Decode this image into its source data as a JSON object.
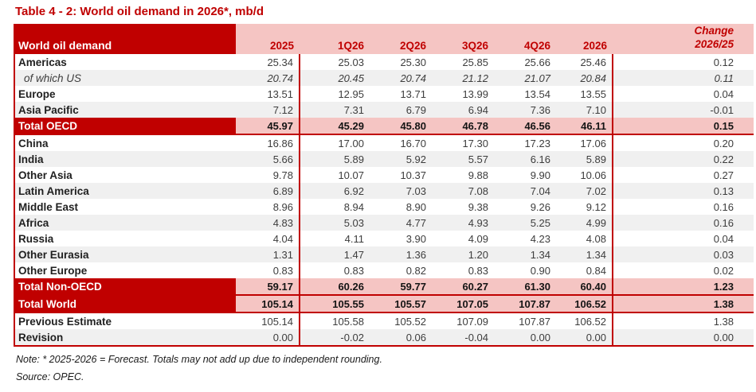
{
  "chart_data": {
    "type": "table",
    "title": "Table 4 - 2: World oil demand in 2026*, mb/d",
    "header_label": "World oil demand",
    "columns": [
      "2025",
      "1Q26",
      "2Q26",
      "3Q26",
      "4Q26",
      "2026"
    ],
    "change_header": {
      "line1": "Change",
      "line2": "2026/25"
    },
    "rows": [
      {
        "label": "Americas",
        "kind": "normal",
        "shade": "white",
        "underline": false,
        "values": [
          "25.34",
          "25.03",
          "25.30",
          "25.85",
          "25.66",
          "25.46",
          "0.12"
        ]
      },
      {
        "label": "of which US",
        "kind": "sub",
        "shade": "gray",
        "underline": false,
        "values": [
          "20.74",
          "20.45",
          "20.74",
          "21.12",
          "21.07",
          "20.84",
          "0.11"
        ]
      },
      {
        "label": "Europe",
        "kind": "normal",
        "shade": "white",
        "underline": false,
        "values": [
          "13.51",
          "12.95",
          "13.71",
          "13.99",
          "13.54",
          "13.55",
          "0.04"
        ]
      },
      {
        "label": "Asia Pacific",
        "kind": "normal",
        "shade": "gray",
        "underline": false,
        "values": [
          "7.12",
          "7.31",
          "6.79",
          "6.94",
          "7.36",
          "7.10",
          "-0.01"
        ]
      },
      {
        "label": "Total OECD",
        "kind": "total",
        "shade": "pink",
        "underline": true,
        "values": [
          "45.97",
          "45.29",
          "45.80",
          "46.78",
          "46.56",
          "46.11",
          "0.15"
        ]
      },
      {
        "label": "China",
        "kind": "normal",
        "shade": "white",
        "underline": false,
        "values": [
          "16.86",
          "17.00",
          "16.70",
          "17.30",
          "17.23",
          "17.06",
          "0.20"
        ]
      },
      {
        "label": "India",
        "kind": "normal",
        "shade": "gray",
        "underline": false,
        "values": [
          "5.66",
          "5.89",
          "5.92",
          "5.57",
          "6.16",
          "5.89",
          "0.22"
        ]
      },
      {
        "label": "Other Asia",
        "kind": "normal",
        "shade": "white",
        "underline": false,
        "values": [
          "9.78",
          "10.07",
          "10.37",
          "9.88",
          "9.90",
          "10.06",
          "0.27"
        ]
      },
      {
        "label": "Latin America",
        "kind": "normal",
        "shade": "gray",
        "underline": false,
        "values": [
          "6.89",
          "6.92",
          "7.03",
          "7.08",
          "7.04",
          "7.02",
          "0.13"
        ]
      },
      {
        "label": "Middle East",
        "kind": "normal",
        "shade": "white",
        "underline": false,
        "values": [
          "8.96",
          "8.94",
          "8.90",
          "9.38",
          "9.26",
          "9.12",
          "0.16"
        ]
      },
      {
        "label": "Africa",
        "kind": "normal",
        "shade": "gray",
        "underline": false,
        "values": [
          "4.83",
          "5.03",
          "4.77",
          "4.93",
          "5.25",
          "4.99",
          "0.16"
        ]
      },
      {
        "label": "Russia",
        "kind": "normal",
        "shade": "white",
        "underline": false,
        "values": [
          "4.04",
          "4.11",
          "3.90",
          "4.09",
          "4.23",
          "4.08",
          "0.04"
        ]
      },
      {
        "label": "Other Eurasia",
        "kind": "normal",
        "shade": "gray",
        "underline": false,
        "values": [
          "1.31",
          "1.47",
          "1.36",
          "1.20",
          "1.34",
          "1.34",
          "0.03"
        ]
      },
      {
        "label": "Other Europe",
        "kind": "normal",
        "shade": "white",
        "underline": false,
        "values": [
          "0.83",
          "0.83",
          "0.82",
          "0.83",
          "0.90",
          "0.84",
          "0.02"
        ]
      },
      {
        "label": "Total Non-OECD",
        "kind": "total",
        "shade": "pink",
        "underline": true,
        "values": [
          "59.17",
          "60.26",
          "59.77",
          "60.27",
          "61.30",
          "60.40",
          "1.23"
        ]
      },
      {
        "label": "Total World",
        "kind": "total",
        "shade": "pink",
        "underline": true,
        "values": [
          "105.14",
          "105.55",
          "105.57",
          "107.05",
          "107.87",
          "106.52",
          "1.38"
        ]
      },
      {
        "label": "Previous Estimate",
        "kind": "normal",
        "shade": "white",
        "underline": false,
        "values": [
          "105.14",
          "105.58",
          "105.52",
          "107.09",
          "107.87",
          "106.52",
          "1.38"
        ]
      },
      {
        "label": "Revision",
        "kind": "normal",
        "shade": "gray",
        "underline": true,
        "values": [
          "0.00",
          "-0.02",
          "0.06",
          "-0.04",
          "0.00",
          "0.00",
          "0.00"
        ]
      }
    ],
    "note": "Note: * 2025-2026 = Forecast. Totals may not add up due to independent rounding.",
    "source": "Source: OPEC.",
    "colors": {
      "accent_red": "#C00000",
      "header_pink": "#F5C5C3",
      "stripe_gray": "#F0F0F0",
      "number_text": "#3d3d3d"
    }
  }
}
